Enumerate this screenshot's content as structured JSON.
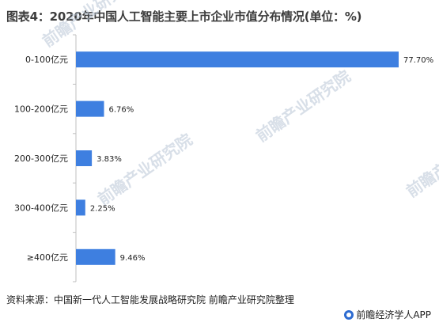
{
  "title": "图表4：2020年中国人工智能主要上市企业市值分布情况(单位：%)",
  "source": "资料来源：中国新一代人工智能发展战略研究院 前瞻产业研究院整理",
  "brand": "前瞻经济学人APP",
  "watermark": "前瞻产业研究院",
  "colors": {
    "bar": "#3e7fe0",
    "axis": "#bfbfbf"
  },
  "chart_data": {
    "type": "bar",
    "orientation": "horizontal",
    "categories": [
      "0-100亿元",
      "100-200亿元",
      "200-300亿元",
      "300-400亿元",
      "≥400亿元"
    ],
    "values": [
      77.7,
      6.76,
      3.83,
      2.25,
      9.46
    ],
    "value_labels": [
      "77.70%",
      "6.76%",
      "3.83%",
      "2.25%",
      "9.46%"
    ],
    "xlim": [
      0,
      80
    ],
    "grid": false,
    "legend": "none"
  }
}
